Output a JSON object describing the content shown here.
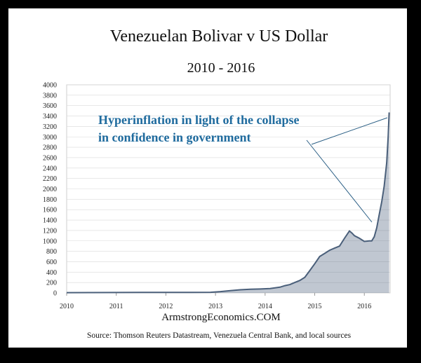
{
  "colors": {
    "frame": "#000000",
    "background": "#ffffff",
    "series": "#4a5f7a",
    "grid": "#d9d9d9",
    "annotation": "#1f6b9e"
  },
  "chart_data": {
    "type": "area",
    "title": "Venezuelan Bolivar v US Dollar",
    "subtitle": "2010 - 2016",
    "xlabel": "",
    "ylabel": "",
    "xlim": [
      2010,
      2016.52
    ],
    "ylim": [
      0,
      4000
    ],
    "yticks": [
      0,
      200,
      400,
      600,
      800,
      1000,
      1200,
      1400,
      1600,
      1800,
      2000,
      2200,
      2400,
      2600,
      2800,
      3000,
      3200,
      3400,
      3600,
      3800,
      4000
    ],
    "xticks": [
      {
        "value": 2010,
        "label": "2010"
      },
      {
        "value": 2011,
        "label": "2011"
      },
      {
        "value": 2012,
        "label": "2012"
      },
      {
        "value": 2013,
        "label": "2013"
      },
      {
        "value": 2014,
        "label": "2014"
      },
      {
        "value": 2015,
        "label": "2015"
      },
      {
        "value": 2016,
        "label": "2016"
      }
    ],
    "grid": true,
    "legend": "none",
    "series": [
      {
        "x": [
          2010.0,
          2010.5,
          2011.0,
          2011.5,
          2012.0,
          2012.5,
          2012.9,
          2013.1,
          2013.3,
          2013.5,
          2013.7,
          2013.9,
          2014.1,
          2014.3,
          2014.4,
          2014.5,
          2014.6,
          2014.7,
          2014.8,
          2014.9,
          2015.0,
          2015.1,
          2015.2,
          2015.3,
          2015.4,
          2015.5,
          2015.6,
          2015.7,
          2015.75,
          2015.8,
          2015.9,
          2016.0,
          2016.1,
          2016.15,
          2016.2,
          2016.25,
          2016.3,
          2016.35,
          2016.4,
          2016.45,
          2016.48,
          2016.5
        ],
        "values": [
          6,
          7,
          8,
          9,
          10,
          11,
          12,
          25,
          45,
          60,
          70,
          75,
          85,
          110,
          140,
          160,
          200,
          240,
          300,
          430,
          560,
          700,
          760,
          820,
          860,
          900,
          1050,
          1190,
          1150,
          1100,
          1050,
          990,
          1000,
          1000,
          1080,
          1250,
          1500,
          1750,
          2050,
          2500,
          3000,
          3470
        ]
      }
    ],
    "annotations": [
      {
        "line1": "Hyperinflation in light of the collapse",
        "line2": "in confidence in government"
      }
    ]
  },
  "footer": {
    "brand": "ArmstrongEconomics.COM",
    "source": "Source: Thomson Reuters Datastream, Venezuela Central Bank, and local sources"
  }
}
